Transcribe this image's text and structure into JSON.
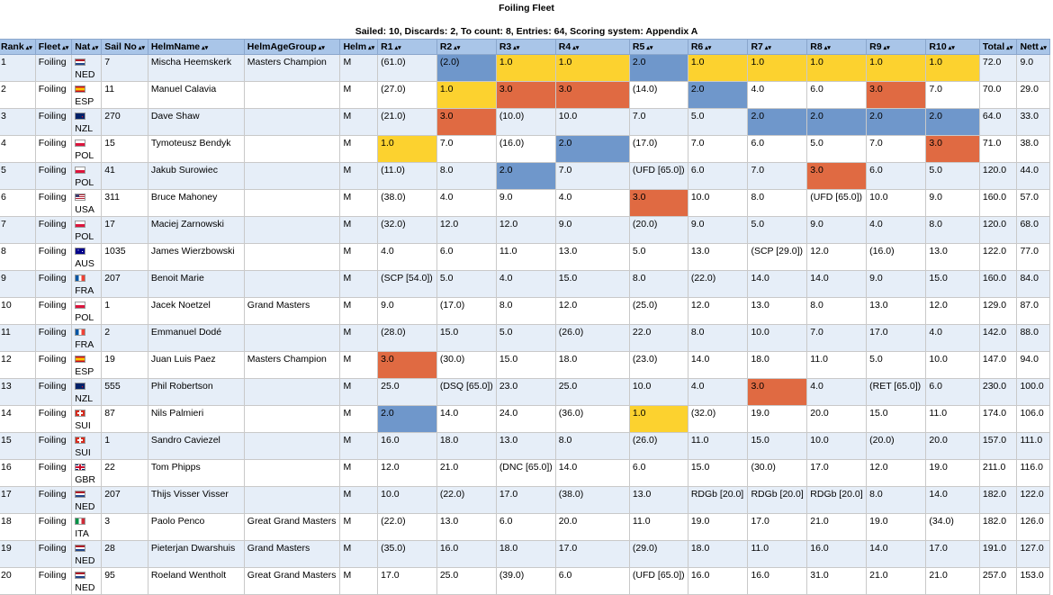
{
  "title": "Foiling Fleet",
  "subtitle": "Sailed: 10, Discards: 2, To count: 8, Entries: 64, Scoring system: Appendix A",
  "colors": {
    "header": "#a9c5e8",
    "first": "#fcd22f",
    "second": "#6f97cb",
    "third": "#e06a42",
    "row_alt": "#e6eef8"
  },
  "columns": [
    "Rank",
    "Fleet",
    "Nat",
    "Sail No",
    "HelmName",
    "HelmAgeGroup",
    "Helm",
    "R1",
    "R2",
    "R3",
    "R4",
    "R5",
    "R6",
    "R7",
    "R8",
    "R9",
    "R10",
    "Total",
    "Nett"
  ],
  "rows": [
    {
      "rank": "1",
      "fleet": "Foiling",
      "nat": "NED",
      "sail": "7",
      "name": "Mischa Heemskerk",
      "age": "Masters Champion",
      "helm": "M",
      "races": [
        "(61.0)",
        "(2.0)",
        "1.0",
        "1.0",
        "2.0",
        "1.0",
        "1.0",
        "1.0",
        "1.0",
        "1.0"
      ],
      "total": "72.0",
      "nett": "9.0"
    },
    {
      "rank": "2",
      "fleet": "Foiling",
      "nat": "ESP",
      "sail": "11",
      "name": "Manuel Calavia",
      "age": "",
      "helm": "M",
      "races": [
        "(27.0)",
        "1.0",
        "3.0",
        "3.0",
        "(14.0)",
        "2.0",
        "4.0",
        "6.0",
        "3.0",
        "7.0"
      ],
      "total": "70.0",
      "nett": "29.0"
    },
    {
      "rank": "3",
      "fleet": "Foiling",
      "nat": "NZL",
      "sail": "270",
      "name": "Dave Shaw",
      "age": "",
      "helm": "M",
      "races": [
        "(21.0)",
        "3.0",
        "(10.0)",
        "10.0",
        "7.0",
        "5.0",
        "2.0",
        "2.0",
        "2.0",
        "2.0"
      ],
      "total": "64.0",
      "nett": "33.0"
    },
    {
      "rank": "4",
      "fleet": "Foiling",
      "nat": "POL",
      "sail": "15",
      "name": "Tymoteusz Bendyk",
      "age": "",
      "helm": "M",
      "races": [
        "1.0",
        "7.0",
        "(16.0)",
        "2.0",
        "(17.0)",
        "7.0",
        "6.0",
        "5.0",
        "7.0",
        "3.0"
      ],
      "total": "71.0",
      "nett": "38.0"
    },
    {
      "rank": "5",
      "fleet": "Foiling",
      "nat": "POL",
      "sail": "41",
      "name": "Jakub Surowiec",
      "age": "",
      "helm": "M",
      "races": [
        "(11.0)",
        "8.0",
        "2.0",
        "7.0",
        "(UFD [65.0])",
        "6.0",
        "7.0",
        "3.0",
        "6.0",
        "5.0"
      ],
      "total": "120.0",
      "nett": "44.0"
    },
    {
      "rank": "6",
      "fleet": "Foiling",
      "nat": "USA",
      "sail": "311",
      "name": "Bruce Mahoney",
      "age": "",
      "helm": "M",
      "races": [
        "(38.0)",
        "4.0",
        "9.0",
        "4.0",
        "3.0",
        "10.0",
        "8.0",
        "(UFD [65.0])",
        "10.0",
        "9.0"
      ],
      "total": "160.0",
      "nett": "57.0"
    },
    {
      "rank": "7",
      "fleet": "Foiling",
      "nat": "POL",
      "sail": "17",
      "name": "Maciej Zarnowski",
      "age": "",
      "helm": "M",
      "races": [
        "(32.0)",
        "12.0",
        "12.0",
        "9.0",
        "(20.0)",
        "9.0",
        "5.0",
        "9.0",
        "4.0",
        "8.0"
      ],
      "total": "120.0",
      "nett": "68.0"
    },
    {
      "rank": "8",
      "fleet": "Foiling",
      "nat": "AUS",
      "sail": "1035",
      "name": "James Wierzbowski",
      "age": "",
      "helm": "M",
      "races": [
        "4.0",
        "6.0",
        "11.0",
        "13.0",
        "5.0",
        "13.0",
        "(SCP [29.0])",
        "12.0",
        "(16.0)",
        "13.0"
      ],
      "total": "122.0",
      "nett": "77.0"
    },
    {
      "rank": "9",
      "fleet": "Foiling",
      "nat": "FRA",
      "sail": "207",
      "name": "Benoit Marie",
      "age": "",
      "helm": "M",
      "races": [
        "(SCP [54.0])",
        "5.0",
        "4.0",
        "15.0",
        "8.0",
        "(22.0)",
        "14.0",
        "14.0",
        "9.0",
        "15.0"
      ],
      "total": "160.0",
      "nett": "84.0"
    },
    {
      "rank": "10",
      "fleet": "Foiling",
      "nat": "POL",
      "sail": "1",
      "name": "Jacek Noetzel",
      "age": "Grand Masters",
      "helm": "M",
      "races": [
        "9.0",
        "(17.0)",
        "8.0",
        "12.0",
        "(25.0)",
        "12.0",
        "13.0",
        "8.0",
        "13.0",
        "12.0"
      ],
      "total": "129.0",
      "nett": "87.0"
    },
    {
      "rank": "11",
      "fleet": "Foiling",
      "nat": "FRA",
      "sail": "2",
      "name": "Emmanuel Dodé",
      "age": "",
      "helm": "M",
      "races": [
        "(28.0)",
        "15.0",
        "5.0",
        "(26.0)",
        "22.0",
        "8.0",
        "10.0",
        "7.0",
        "17.0",
        "4.0"
      ],
      "total": "142.0",
      "nett": "88.0"
    },
    {
      "rank": "12",
      "fleet": "Foiling",
      "nat": "ESP",
      "sail": "19",
      "name": "Juan Luis Paez",
      "age": "Masters Champion",
      "helm": "M",
      "races": [
        "3.0",
        "(30.0)",
        "15.0",
        "18.0",
        "(23.0)",
        "14.0",
        "18.0",
        "11.0",
        "5.0",
        "10.0"
      ],
      "total": "147.0",
      "nett": "94.0"
    },
    {
      "rank": "13",
      "fleet": "Foiling",
      "nat": "NZL",
      "sail": "555",
      "name": "Phil Robertson",
      "age": "",
      "helm": "M",
      "races": [
        "25.0",
        "(DSQ [65.0])",
        "23.0",
        "25.0",
        "10.0",
        "4.0",
        "3.0",
        "4.0",
        "(RET [65.0])",
        "6.0"
      ],
      "total": "230.0",
      "nett": "100.0"
    },
    {
      "rank": "14",
      "fleet": "Foiling",
      "nat": "SUI",
      "sail": "87",
      "name": "Nils Palmieri",
      "age": "",
      "helm": "M",
      "races": [
        "2.0",
        "14.0",
        "24.0",
        "(36.0)",
        "1.0",
        "(32.0)",
        "19.0",
        "20.0",
        "15.0",
        "11.0"
      ],
      "total": "174.0",
      "nett": "106.0"
    },
    {
      "rank": "15",
      "fleet": "Foiling",
      "nat": "SUI",
      "sail": "1",
      "name": "Sandro Caviezel",
      "age": "",
      "helm": "M",
      "races": [
        "16.0",
        "18.0",
        "13.0",
        "8.0",
        "(26.0)",
        "11.0",
        "15.0",
        "10.0",
        "(20.0)",
        "20.0"
      ],
      "total": "157.0",
      "nett": "111.0"
    },
    {
      "rank": "16",
      "fleet": "Foiling",
      "nat": "GBR",
      "sail": "22",
      "name": "Tom Phipps",
      "age": "",
      "helm": "M",
      "races": [
        "12.0",
        "21.0",
        "(DNC [65.0])",
        "14.0",
        "6.0",
        "15.0",
        "(30.0)",
        "17.0",
        "12.0",
        "19.0"
      ],
      "total": "211.0",
      "nett": "116.0"
    },
    {
      "rank": "17",
      "fleet": "Foiling",
      "nat": "NED",
      "sail": "207",
      "name": "Thijs Visser Visser",
      "age": "",
      "helm": "M",
      "races": [
        "10.0",
        "(22.0)",
        "17.0",
        "(38.0)",
        "13.0",
        "RDGb [20.0]",
        "RDGb [20.0]",
        "RDGb [20.0]",
        "8.0",
        "14.0"
      ],
      "total": "182.0",
      "nett": "122.0"
    },
    {
      "rank": "18",
      "fleet": "Foiling",
      "nat": "ITA",
      "sail": "3",
      "name": "Paolo Penco",
      "age": "Great Grand Masters",
      "helm": "M",
      "races": [
        "(22.0)",
        "13.0",
        "6.0",
        "20.0",
        "11.0",
        "19.0",
        "17.0",
        "21.0",
        "19.0",
        "(34.0)"
      ],
      "total": "182.0",
      "nett": "126.0"
    },
    {
      "rank": "19",
      "fleet": "Foiling",
      "nat": "NED",
      "sail": "28",
      "name": "Pieterjan Dwarshuis",
      "age": "Grand Masters",
      "helm": "M",
      "races": [
        "(35.0)",
        "16.0",
        "18.0",
        "17.0",
        "(29.0)",
        "18.0",
        "11.0",
        "16.0",
        "14.0",
        "17.0"
      ],
      "total": "191.0",
      "nett": "127.0"
    },
    {
      "rank": "20",
      "fleet": "Foiling",
      "nat": "NED",
      "sail": "95",
      "name": "Roeland Wentholt",
      "age": "Great Grand Masters",
      "helm": "M",
      "races": [
        "17.0",
        "25.0",
        "(39.0)",
        "6.0",
        "(UFD [65.0])",
        "16.0",
        "16.0",
        "31.0",
        "21.0",
        "21.0"
      ],
      "total": "257.0",
      "nett": "153.0"
    }
  ]
}
